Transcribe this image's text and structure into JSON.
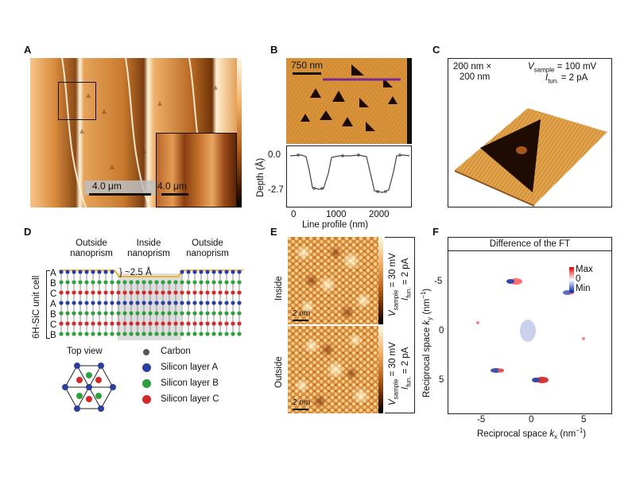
{
  "panels": {
    "A": {
      "label": "A",
      "scale_main": "4.0 μm",
      "scale_inset": "4.0 μm"
    },
    "B": {
      "label": "B",
      "scale": "750 nm",
      "y_label": "Depth (Å)",
      "x_label": "Line profile (nm)",
      "y_ticks": [
        "0.0",
        "-2.7"
      ],
      "x_ticks": [
        "0",
        "1000",
        "2000"
      ]
    },
    "C": {
      "label": "C",
      "size_line1": "200 nm ×",
      "size_line2": "200 nm",
      "vsample_sym": "V",
      "vsample_sub": "sample",
      "vsample_val": " = 100 mV",
      "itun_sym": "I",
      "itun_sub": "tun.",
      "itun_val": " = 2 pA"
    },
    "D": {
      "label": "D",
      "col1_line1": "Outside",
      "col1_line2": "nanoprism",
      "col2_line1": "Inside",
      "col2_line2": "nanoprism",
      "col3_line1": "Outside",
      "col3_line2": "nanoprism",
      "unit_cell": "6H-SiC unit cell",
      "layers": [
        "A",
        "B",
        "C",
        "A",
        "B",
        "C",
        "B"
      ],
      "step": "~2.5 Å",
      "top_view": "Top view",
      "legend": [
        {
          "label": "Carbon",
          "color": "#555555"
        },
        {
          "label": "Silicon layer A",
          "color": "#2b3fa0"
        },
        {
          "label": "Silicon layer B",
          "color": "#2e9e3e"
        },
        {
          "label": "Silicon layer C",
          "color": "#d02a2a"
        }
      ]
    },
    "E": {
      "label": "E",
      "row1": "Inside",
      "row2": "Outside",
      "scale": "2 nm",
      "cond_v_sym": "V",
      "cond_v_sub": "sample",
      "cond_v_val": " = 30 mV",
      "cond_i_sym": "I",
      "cond_i_sub": "fun.",
      "cond_i_val": " = 2 pA"
    },
    "F": {
      "label": "F",
      "title": "Difference of the FT",
      "x_label_pre": "Reciprocal space ",
      "x_label_sym": "k",
      "x_label_sub": "x",
      "x_label_unit": " (nm",
      "x_label_exp": "−1",
      "x_label_end": ")",
      "y_label_pre": "Reciprocal space ",
      "y_label_sym": "k",
      "y_label_sub": "y",
      "y_label_unit": " (nm",
      "y_label_exp": "−1",
      "y_label_end": ")",
      "x_ticks": [
        "-5",
        "0",
        "5"
      ],
      "y_ticks": [
        "-5",
        "0",
        "5"
      ],
      "cbar_max": "Max",
      "cbar_mid": "0",
      "cbar_min": "Min"
    }
  }
}
